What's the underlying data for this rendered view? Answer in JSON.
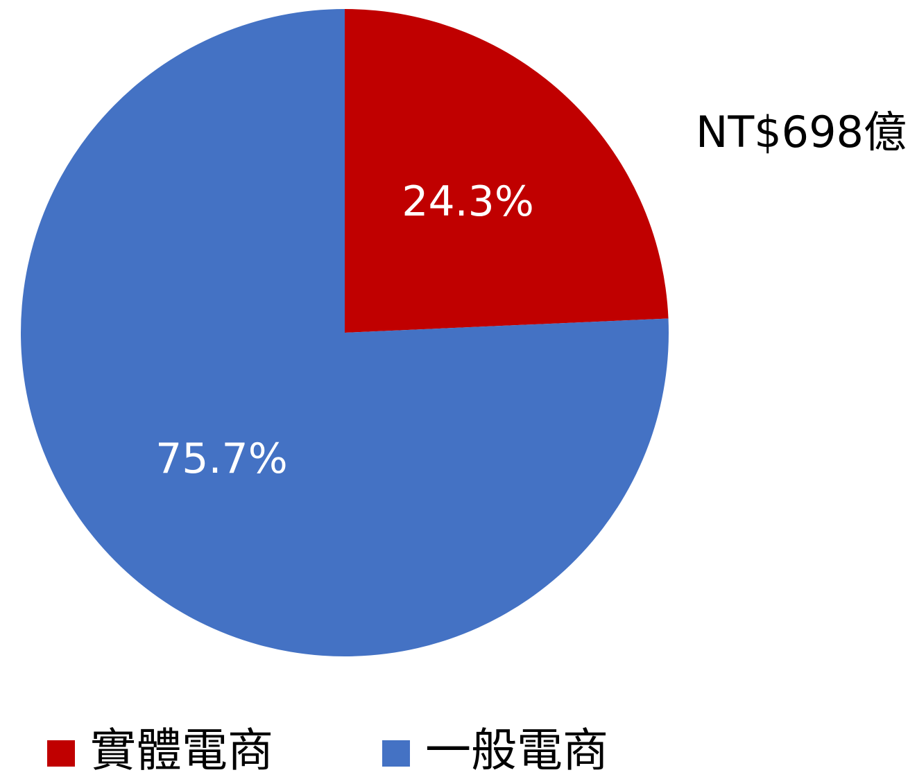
{
  "chart_data": {
    "type": "pie",
    "categories": [
      "實體電商",
      "一般電商"
    ],
    "values": [
      24.3,
      75.7
    ],
    "value_labels": [
      "24.3%",
      "75.7%"
    ],
    "colors": [
      "#c00000",
      "#4472c4"
    ],
    "annotation": "NT$698億",
    "legend": "bottom"
  }
}
